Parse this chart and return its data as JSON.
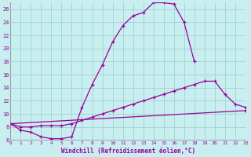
{
  "xlabel": "Windchill (Refroidissement éolien,°C)",
  "bg_color": "#c8eef0",
  "line_color": "#990099",
  "grid_color": "#99cccc",
  "x_min": 0,
  "x_max": 23,
  "y_min": 6,
  "y_max": 27,
  "yticks": [
    6,
    8,
    10,
    12,
    14,
    16,
    18,
    20,
    22,
    24,
    26
  ],
  "xticks": [
    0,
    1,
    2,
    3,
    4,
    5,
    6,
    7,
    8,
    9,
    10,
    11,
    12,
    13,
    14,
    15,
    16,
    17,
    18,
    19,
    20,
    21,
    22,
    23
  ],
  "curve1_x": [
    0,
    1,
    2,
    3,
    4,
    5,
    6,
    7,
    8,
    9,
    10,
    11,
    12,
    13,
    14,
    15,
    16,
    17,
    18
  ],
  "curve1_y": [
    8.5,
    7.5,
    7.2,
    6.5,
    6.2,
    6.2,
    6.5,
    11.0,
    14.5,
    17.5,
    21.0,
    23.5,
    25.0,
    25.5,
    27.0,
    27.0,
    26.8,
    24.0,
    18.0
  ],
  "curve2_x": [
    0,
    1,
    2,
    3,
    4,
    5,
    6,
    7,
    8,
    9,
    10,
    11,
    12,
    13,
    14,
    15,
    16,
    17,
    18,
    19,
    20,
    21,
    22,
    23
  ],
  "curve2_y": [
    8.5,
    8.0,
    8.0,
    8.2,
    8.2,
    8.2,
    8.5,
    9.0,
    9.5,
    10.0,
    10.5,
    11.0,
    11.5,
    12.0,
    12.5,
    13.0,
    13.5,
    14.0,
    14.5,
    15.0,
    15.0,
    13.0,
    11.5,
    11.0
  ],
  "curve3_x": [
    0,
    23
  ],
  "curve3_y": [
    8.5,
    10.5
  ]
}
